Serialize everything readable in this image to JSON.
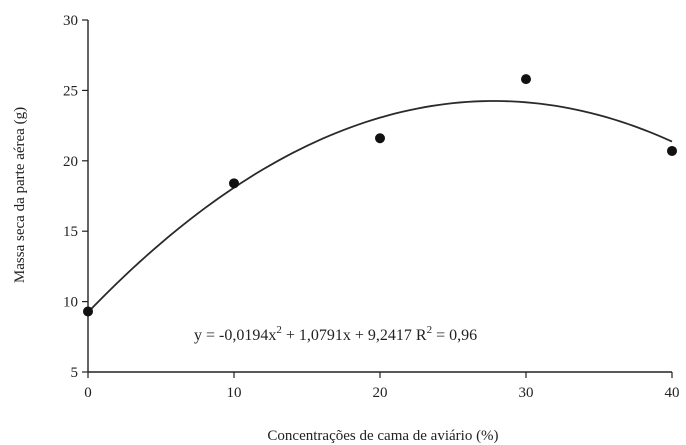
{
  "chart_data": {
    "type": "scatter",
    "title": "",
    "xlabel": "Concentrações de cama de aviário (%)",
    "ylabel": "Massa seca da parte aérea (g)",
    "xlim": [
      0,
      40
    ],
    "ylim": [
      5,
      30
    ],
    "x_ticks": [
      0,
      10,
      20,
      30,
      40
    ],
    "y_ticks": [
      5,
      10,
      15,
      20,
      25,
      30
    ],
    "points": [
      {
        "x": 0,
        "y": 9.3
      },
      {
        "x": 10,
        "y": 18.4
      },
      {
        "x": 20,
        "y": 21.6
      },
      {
        "x": 30,
        "y": 25.8
      },
      {
        "x": 40,
        "y": 20.7
      }
    ],
    "fit": {
      "type": "quadratic",
      "a": -0.0194,
      "b": 1.0791,
      "c": 9.2417,
      "x_range": [
        0,
        40
      ],
      "equation_parts": {
        "left": "y = -0,0194x",
        "exp": "2",
        "right": " + 1,0791x + 9,2417   R",
        "r_exp": "2",
        "r_value": " = 0,96"
      }
    },
    "grid": false,
    "legend": "none",
    "colors": {
      "points": "#111111",
      "curve": "#2a2a2a",
      "axes": "#222222"
    }
  }
}
